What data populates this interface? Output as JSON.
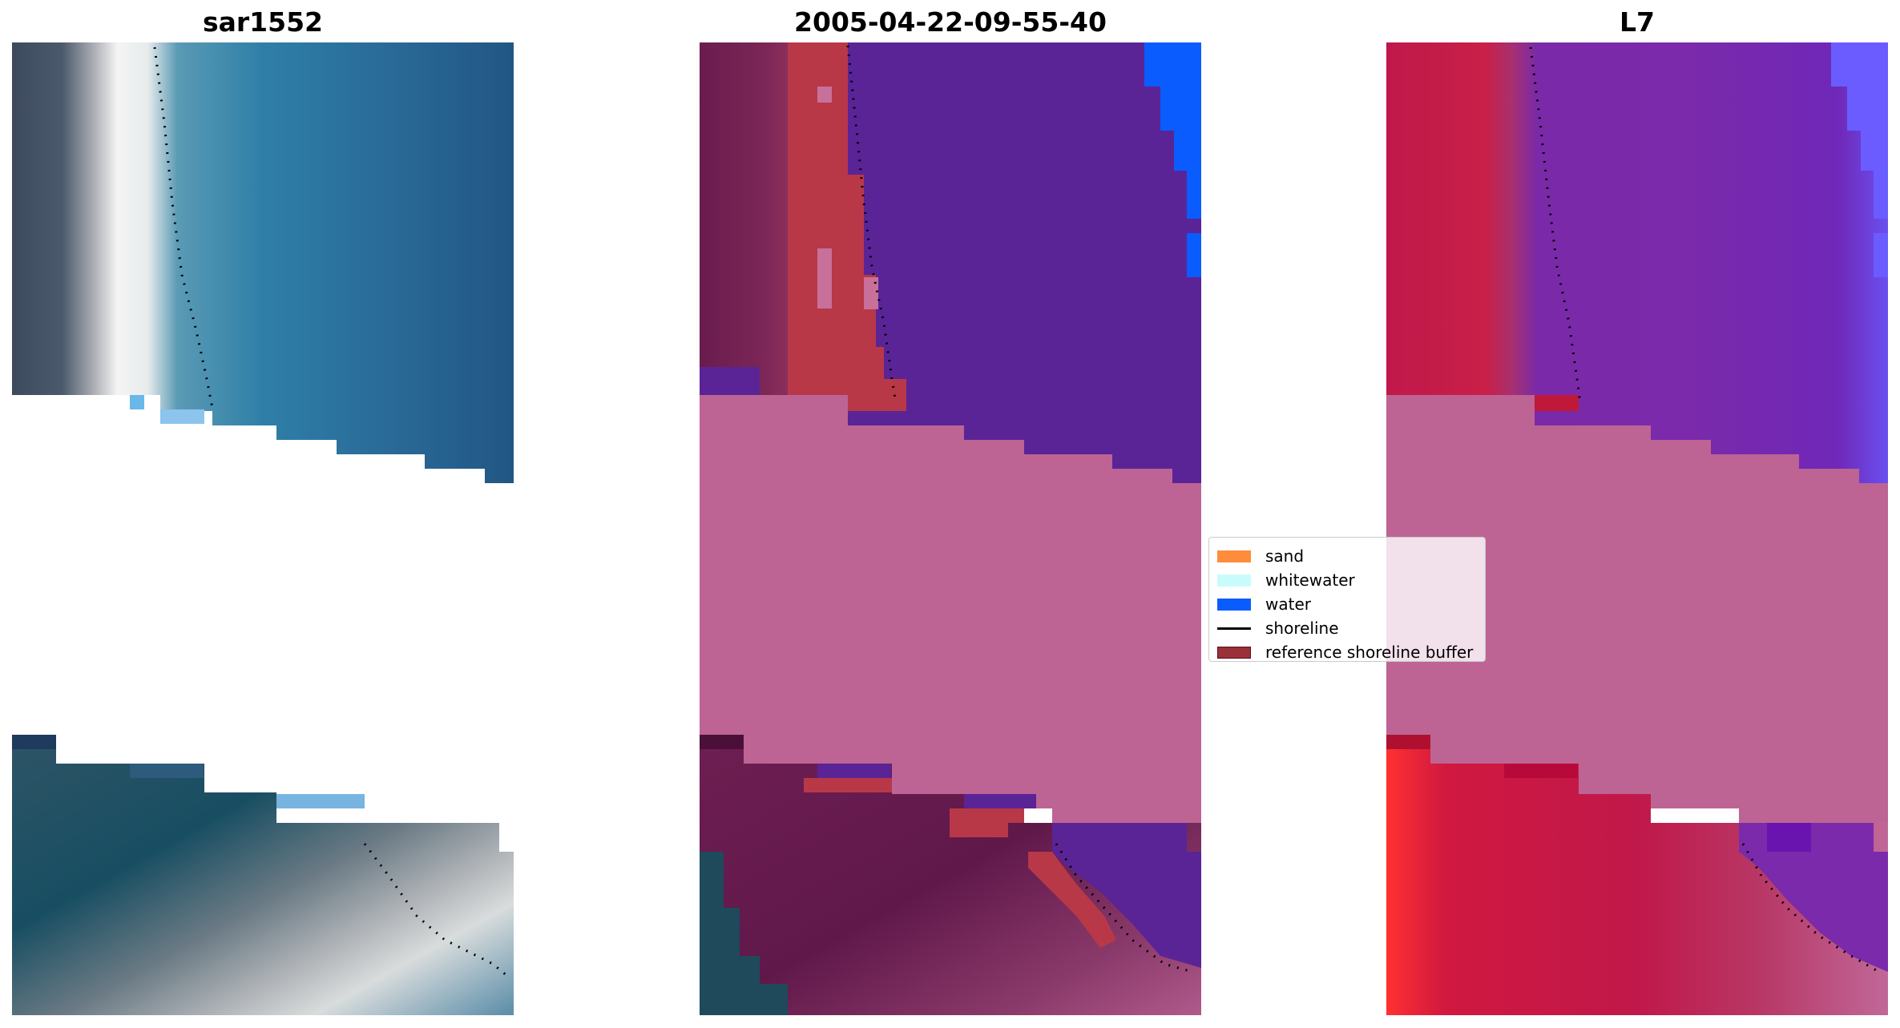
{
  "panels": [
    {
      "title": "sar1552"
    },
    {
      "title": "2005-04-22-09-55-40"
    },
    {
      "title": "L7"
    }
  ],
  "legend": {
    "items": [
      {
        "label": "sand",
        "color": "#ff8c3c",
        "kind": "patch"
      },
      {
        "label": "whitewater",
        "color": "#c8fcfc",
        "kind": "patch"
      },
      {
        "label": "water",
        "color": "#0a5cff",
        "kind": "patch"
      },
      {
        "label": "shoreline",
        "color": "#000000",
        "kind": "line"
      },
      {
        "label": "reference shoreline buffer",
        "color": "#9a3038",
        "kind": "patch"
      }
    ]
  },
  "colors": {
    "buffer_pink": "#bd6494",
    "classified_water": "#5a2496",
    "water_blue": "#0a5cff",
    "sand_red": "#b83848",
    "land_maroon": "#6e1e50",
    "l7_red": "#c01848",
    "l7_purple": "#7a2aaa"
  }
}
